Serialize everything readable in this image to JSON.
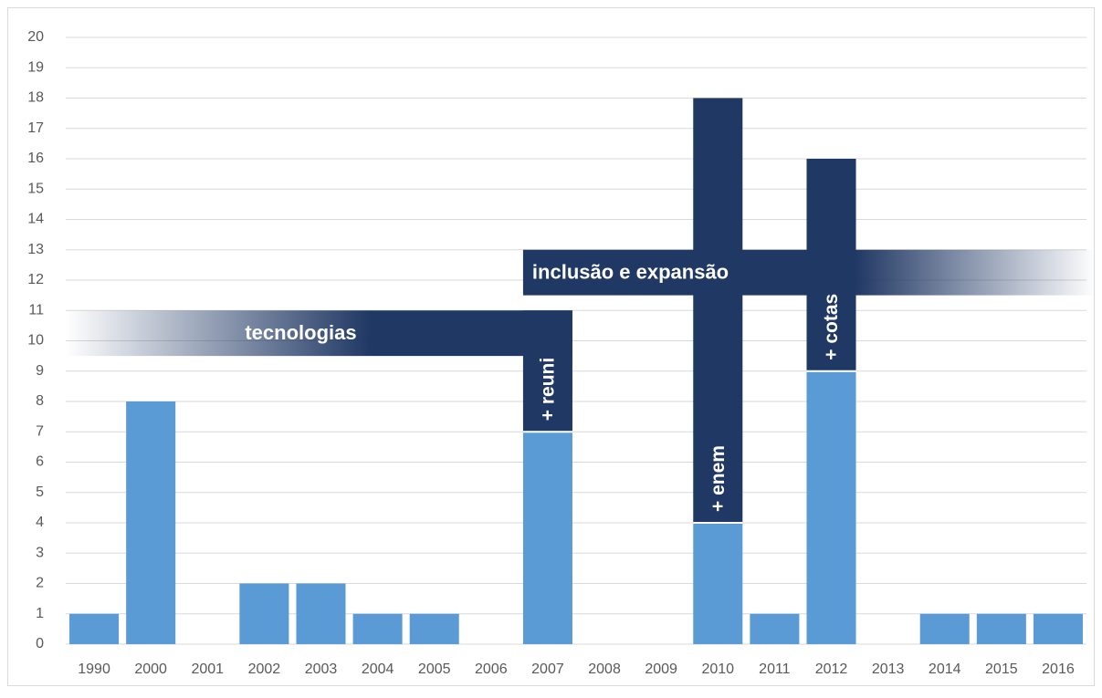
{
  "chart_data": {
    "type": "bar",
    "categories": [
      "1990",
      "2000",
      "2001",
      "2002",
      "2003",
      "2004",
      "2005",
      "2006",
      "2007",
      "2008",
      "2009",
      "2010",
      "2011",
      "2012",
      "2013",
      "2014",
      "2015",
      "2016"
    ],
    "series": [
      {
        "color": "#5b9bd5",
        "values": [
          1,
          8,
          0,
          2,
          2,
          1,
          1,
          0,
          7,
          0,
          0,
          4,
          1,
          9,
          0,
          1,
          1,
          1
        ]
      },
      {
        "color": "#203864",
        "values": [
          null,
          null,
          null,
          null,
          null,
          null,
          null,
          null,
          4,
          null,
          null,
          14,
          null,
          7,
          null,
          null,
          null,
          null
        ],
        "labels": [
          null,
          null,
          null,
          null,
          null,
          null,
          null,
          null,
          "+ reuni",
          null,
          null,
          "+ enem",
          null,
          "+ cotas",
          null,
          null,
          null,
          null
        ]
      }
    ],
    "periods": [
      {
        "label": "tecnologias",
        "from": "1990",
        "to": "2007",
        "ylim": [
          9.5,
          11
        ],
        "fade": "left",
        "color": "#203864"
      },
      {
        "label": "inclusão e expansão",
        "from": "2007",
        "to": "2016",
        "ylim": [
          11.5,
          13
        ],
        "fade": "right",
        "color": "#203864"
      }
    ],
    "ylim": [
      0,
      20
    ],
    "yticks": [
      0,
      1,
      2,
      3,
      4,
      5,
      6,
      7,
      8,
      9,
      10,
      11,
      12,
      13,
      14,
      15,
      16,
      17,
      18,
      19,
      20
    ],
    "grid": true
  }
}
